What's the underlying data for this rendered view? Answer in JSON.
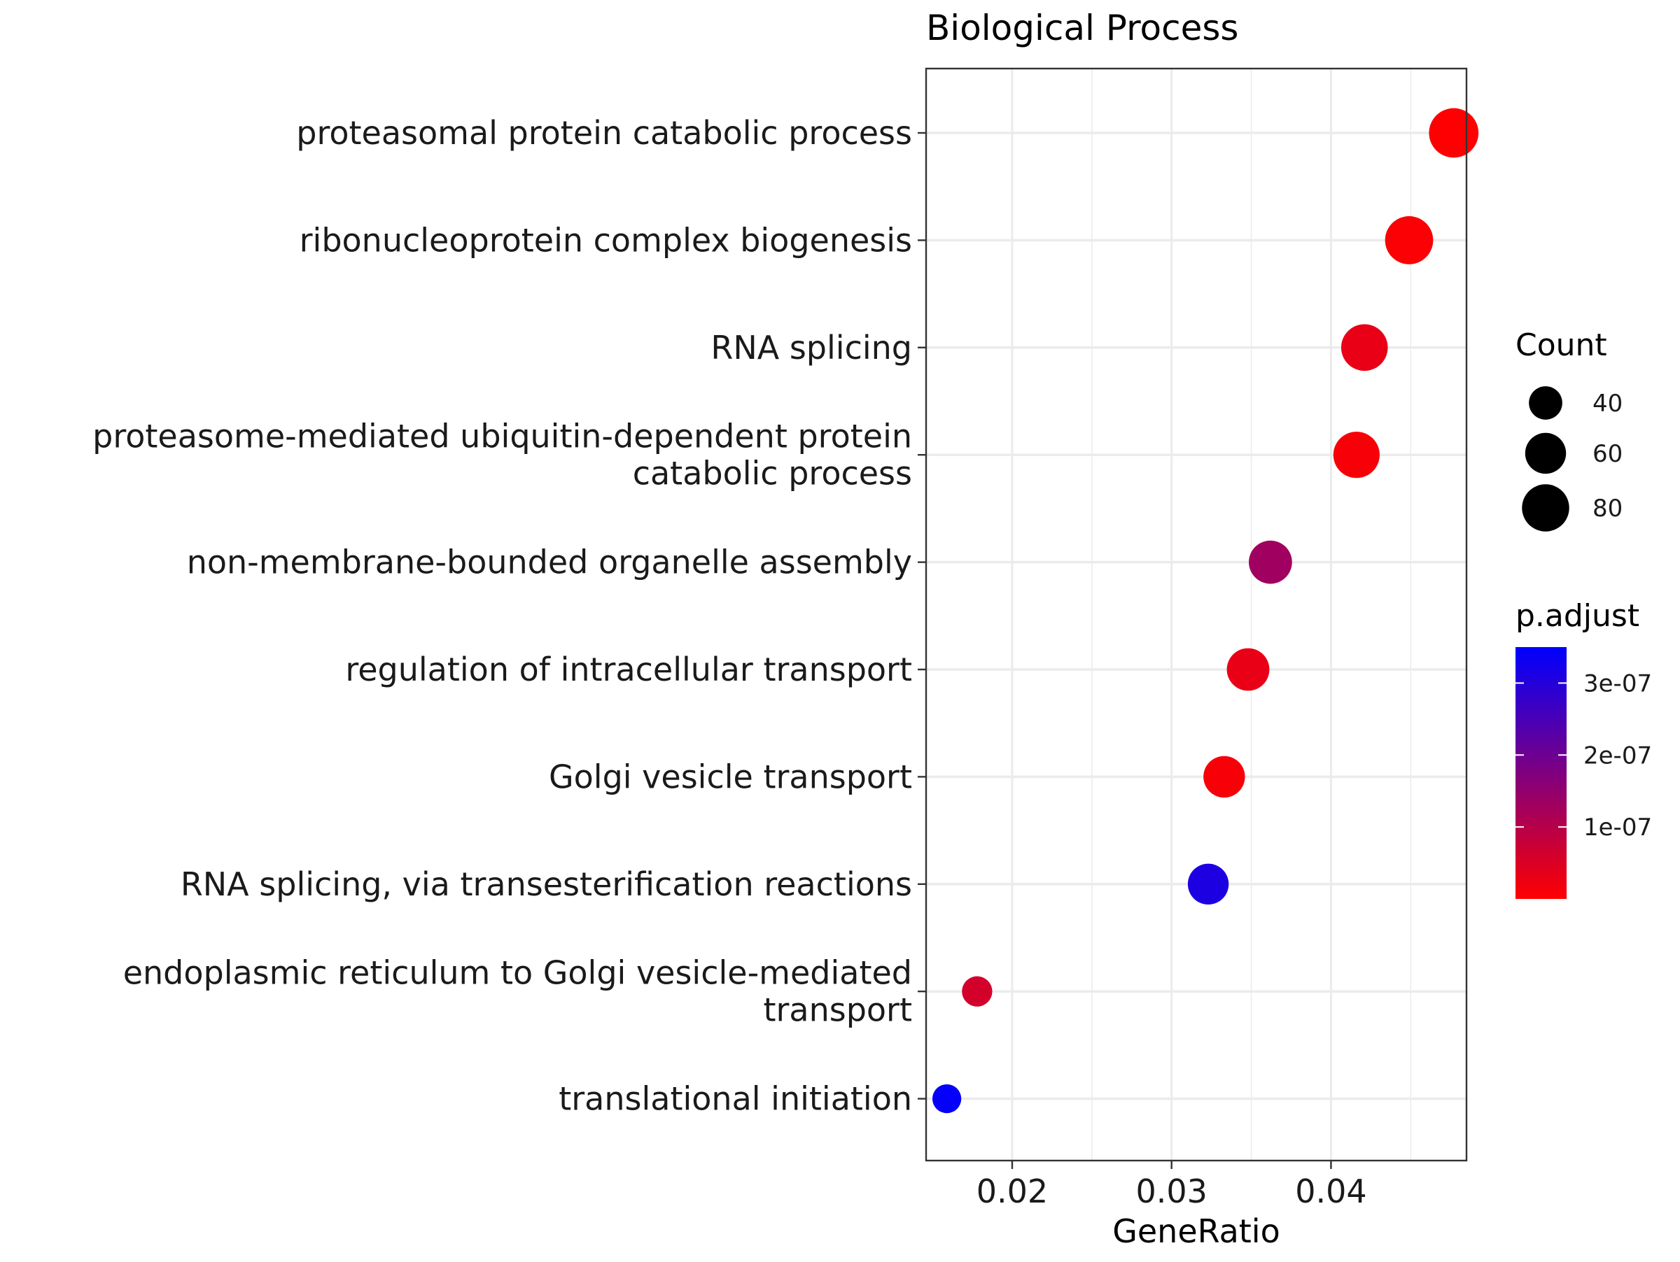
{
  "chart_data": {
    "type": "scatter",
    "title": "Biological Process",
    "xlabel": "GeneRatio",
    "ylabel": "",
    "xlim": [
      0.0146,
      0.0485
    ],
    "x_ticks": [
      0.02,
      0.03,
      0.04
    ],
    "x_tick_labels": [
      "0.02",
      "0.03",
      "0.04"
    ],
    "grid": true,
    "categories": [
      [
        "proteasomal protein catabolic process"
      ],
      [
        "ribonucleoprotein complex biogenesis"
      ],
      [
        "RNA splicing"
      ],
      [
        "proteasome-mediated ubiquitin-dependent protein",
        "catabolic process"
      ],
      [
        "non-membrane-bounded organelle assembly"
      ],
      [
        "regulation of intracellular transport"
      ],
      [
        "Golgi vesicle transport"
      ],
      [
        "RNA splicing, via transesterification reactions"
      ],
      [
        "endoplasmic reticulum to Golgi vesicle-mediated",
        "transport"
      ],
      [
        "translational initiation"
      ]
    ],
    "points": [
      {
        "x": 0.0477,
        "count": 88,
        "p_adjust": 2e-09
      },
      {
        "x": 0.0449,
        "count": 83,
        "p_adjust": 5e-09
      },
      {
        "x": 0.0421,
        "count": 78,
        "p_adjust": 3e-08
      },
      {
        "x": 0.0416,
        "count": 77,
        "p_adjust": 1e-08
      },
      {
        "x": 0.0362,
        "count": 67,
        "p_adjust": 1.3e-07
      },
      {
        "x": 0.0348,
        "count": 65,
        "p_adjust": 3e-08
      },
      {
        "x": 0.0333,
        "count": 62,
        "p_adjust": 1e-08
      },
      {
        "x": 0.0323,
        "count": 60,
        "p_adjust": 3.1e-07
      },
      {
        "x": 0.0178,
        "count": 33,
        "p_adjust": 6e-08
      },
      {
        "x": 0.0159,
        "count": 30,
        "p_adjust": 3.45e-07
      }
    ],
    "size_legend": {
      "title": "Count",
      "breaks": [
        40,
        60,
        80
      ],
      "labels": [
        "40",
        "60",
        "80"
      ]
    },
    "color_legend": {
      "title": "p.adjust",
      "low_color": "#FF0000",
      "high_color": "#0000FF",
      "min": 0,
      "max": 3.5e-07,
      "breaks": [
        1e-07,
        2e-07,
        3e-07
      ],
      "labels": [
        "1e-07",
        "2e-07",
        "3e-07"
      ]
    }
  }
}
